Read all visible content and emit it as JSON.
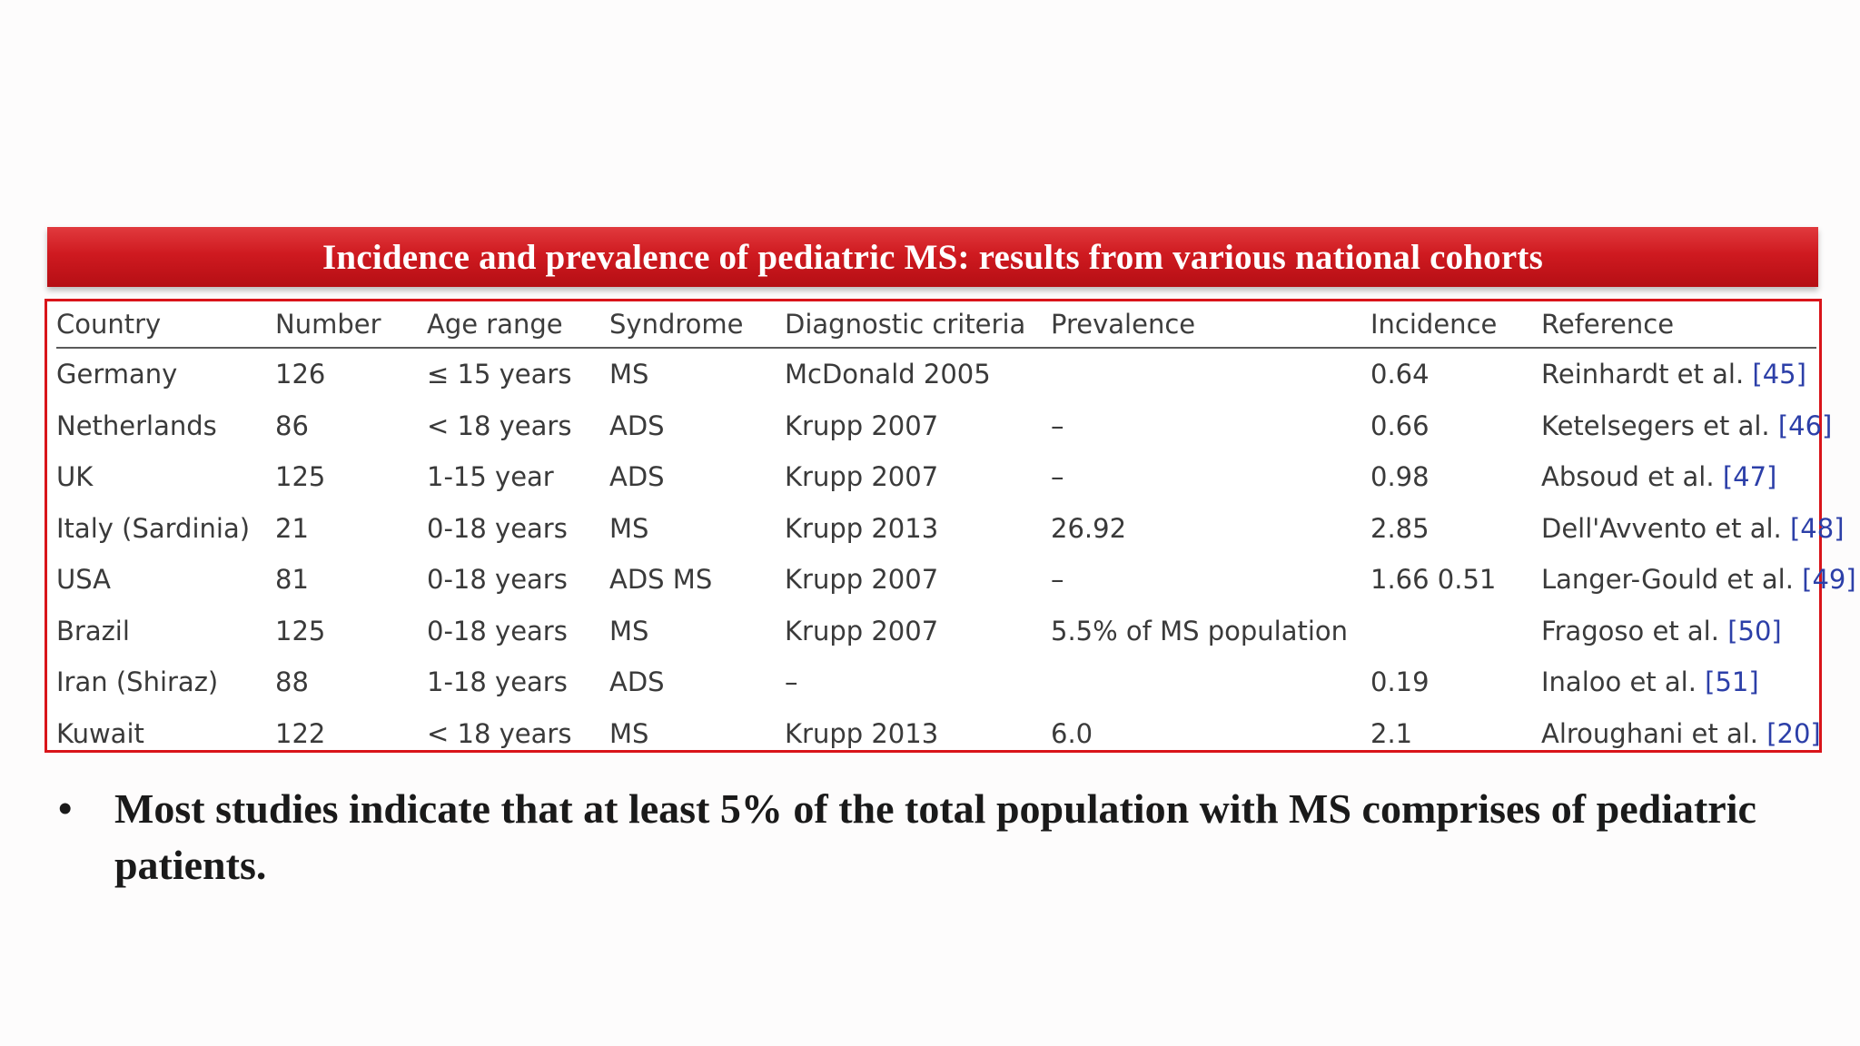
{
  "title": "Incidence and prevalence of pediatric MS: results from various national cohorts",
  "table": {
    "headers": [
      "Country",
      "Number",
      "Age range",
      "Syndrome",
      "Diagnostic criteria",
      "Prevalence",
      "Incidence",
      "Reference"
    ],
    "rows": [
      {
        "country": "Germany",
        "number": "126",
        "age": "≤ 15 years",
        "syndrome": "MS",
        "criteria": "McDonald 2005",
        "prevalence": "",
        "incidence": "0.64",
        "ref_author": "Reinhardt et al. ",
        "ref_num": "[45]"
      },
      {
        "country": "Netherlands",
        "number": "86",
        "age": "< 18 years",
        "syndrome": "ADS",
        "criteria": "Krupp 2007",
        "prevalence": "–",
        "incidence": "0.66",
        "ref_author": "Ketelsegers et al. ",
        "ref_num": "[46]"
      },
      {
        "country": "UK",
        "number": "125",
        "age": "1-15 year",
        "syndrome": "ADS",
        "criteria": "Krupp 2007",
        "prevalence": "–",
        "incidence": "0.98",
        "ref_author": "Absoud et al. ",
        "ref_num": "[47]"
      },
      {
        "country": "Italy (Sardinia)",
        "number": "21",
        "age": "0-18 years",
        "syndrome": "MS",
        "criteria": "Krupp 2013",
        "prevalence": "26.92",
        "incidence": "2.85",
        "ref_author": "Dell'Avvento et al. ",
        "ref_num": "[48]"
      },
      {
        "country": "USA",
        "number": "81",
        "age": "0-18 years",
        "syndrome": "ADS MS",
        "criteria": "Krupp 2007",
        "prevalence": "–",
        "incidence": "1.66 0.51",
        "ref_author": "Langer-Gould et al. ",
        "ref_num": "[49]"
      },
      {
        "country": "Brazil",
        "number": "125",
        "age": "0-18 years",
        "syndrome": "MS",
        "criteria": "Krupp 2007",
        "prevalence": "5.5% of MS population",
        "incidence": "",
        "ref_author": "Fragoso et al. ",
        "ref_num": "[50]"
      },
      {
        "country": "Iran (Shiraz)",
        "number": "88",
        "age": "1-18 years",
        "syndrome": "ADS",
        "criteria": "–",
        "prevalence": "",
        "incidence": "0.19",
        "ref_author": "Inaloo et al. ",
        "ref_num": "[51]"
      },
      {
        "country": "Kuwait",
        "number": "122",
        "age": "< 18 years",
        "syndrome": "MS",
        "criteria": "Krupp 2013",
        "prevalence": "6.0",
        "incidence": "2.1",
        "ref_author": "Alroughani et al. ",
        "ref_num": "[20]"
      }
    ]
  },
  "bullet": {
    "symbol": "•",
    "text": "Most studies indicate that at least 5% of the total population with MS comprises of pediatric patients."
  }
}
